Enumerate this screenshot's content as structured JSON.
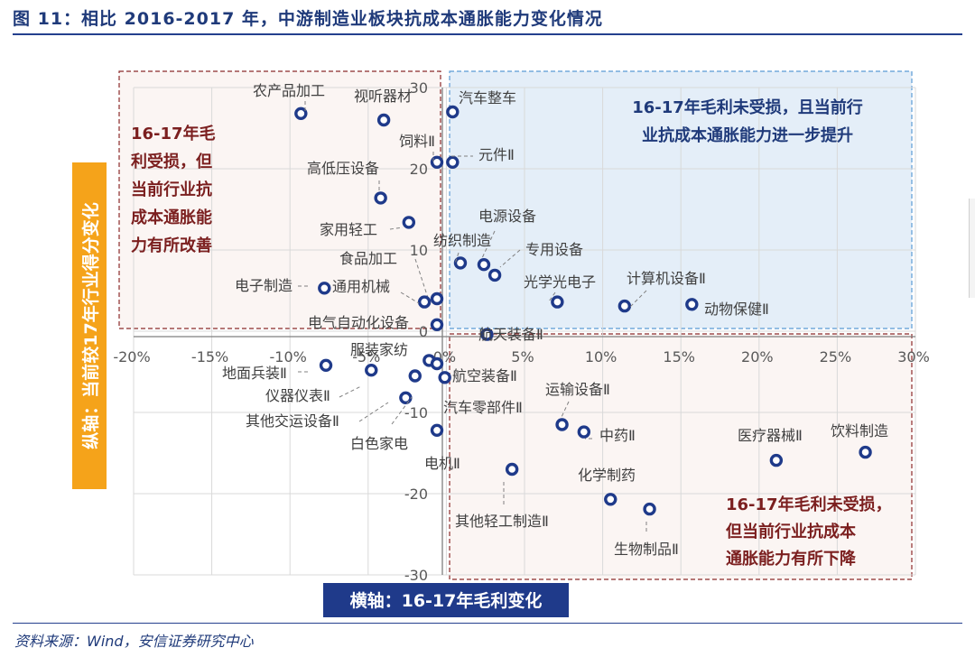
{
  "title": "图 11：相比 2016-2017 年，中游制造业板块抗成本通胀能力变化情况",
  "source": "资料来源：Wind，安信证券研究中心",
  "colors": {
    "title": "#1f3a7a",
    "point": "#1f3a8a",
    "zone_blue_fill": "#e4eef8",
    "zone_blue_border": "#5b9bd5",
    "zone_blue_text": "#1f3a7a",
    "zone_red_fill": "#fbf5f3",
    "zone_red_border": "#8b2a2a",
    "zone_red_text": "#7b1f1f",
    "y_label_bg": "#f5a31a",
    "x_label_bg": "#1f3a8a"
  },
  "chart_data": {
    "type": "scatter",
    "xlabel": "横轴：16-17年毛利变化",
    "ylabel": "纵轴：当前较17年行业得分变化",
    "x_unit": "percent",
    "xlim": [
      -20,
      30
    ],
    "ylim": [
      -30,
      30
    ],
    "x_ticks": [
      "-20%",
      "-15%",
      "-10%",
      "-5%",
      "0%",
      "5%",
      "10%",
      "15%",
      "20%",
      "25%",
      "30%"
    ],
    "y_ticks": [
      "30",
      "20",
      "10",
      "0",
      "-10",
      "-20",
      "-30"
    ],
    "grid": true,
    "zones": [
      {
        "name": "upper-left",
        "text": [
          "16-17年毛",
          "利受损，但",
          "当前行业抗",
          "成本通胀能",
          "力有所改善"
        ]
      },
      {
        "name": "upper-right",
        "text": [
          "16-17年毛利未受损，且当前行",
          "业抗成本通胀能力进一步提升"
        ]
      },
      {
        "name": "lower-right",
        "text": [
          "16-17年毛利未受损，",
          "但当前行业抗成本",
          "通胀能力有所下降"
        ]
      }
    ],
    "points": [
      {
        "label": "农产品加工",
        "x": -9.3,
        "y": 26.8
      },
      {
        "label": "视听器材",
        "x": -4.0,
        "y": 26.0
      },
      {
        "label": "汽车整车",
        "x": 0.4,
        "y": 27.0
      },
      {
        "label": "饲料Ⅱ",
        "x": -0.6,
        "y": 20.8
      },
      {
        "label": "元件Ⅱ",
        "x": 0.4,
        "y": 20.8
      },
      {
        "label": "高低压设备",
        "x": -4.2,
        "y": 16.4
      },
      {
        "label": "家用轻工",
        "x": -2.4,
        "y": 13.4
      },
      {
        "label": "电源设备",
        "x": 2.4,
        "y": 8.2
      },
      {
        "label": "纺织制造",
        "x": 0.9,
        "y": 8.4
      },
      {
        "label": "专用设备",
        "x": 3.1,
        "y": 6.9
      },
      {
        "label": "食品加工",
        "x": -0.6,
        "y": 4.0
      },
      {
        "label": "电子制造",
        "x": -7.8,
        "y": 5.3
      },
      {
        "label": "通用机械",
        "x": -1.4,
        "y": 3.6
      },
      {
        "label": "光学光电子",
        "x": 7.1,
        "y": 3.6
      },
      {
        "label": "计算机设备Ⅱ",
        "x": 11.4,
        "y": 3.1
      },
      {
        "label": "动物保健Ⅱ",
        "x": 15.7,
        "y": 3.3
      },
      {
        "label": "电气自动化设备",
        "x": -0.6,
        "y": 0.8
      },
      {
        "label": "航天装备Ⅱ",
        "x": 2.6,
        "y": -0.4
      },
      {
        "label": "服装家纺",
        "x": -1.1,
        "y": -3.6
      },
      {
        "label": "地面兵装Ⅱ",
        "x": -7.7,
        "y": -4.2
      },
      {
        "label": "航空装备Ⅱ",
        "x": -0.6,
        "y": -4.0
      },
      {
        "label": "仪器仪表Ⅱ",
        "x": -4.8,
        "y": -4.8
      },
      {
        "label": "汽车零部件Ⅱ",
        "x": -0.1,
        "y": -5.7
      },
      {
        "label": "其他交运设备Ⅱ",
        "x": -2.0,
        "y": -5.5
      },
      {
        "label": "运输设备Ⅱ",
        "x": 7.4,
        "y": -11.5
      },
      {
        "label": "白色家电",
        "x": -2.6,
        "y": -8.2
      },
      {
        "label": "中药Ⅱ",
        "x": 8.8,
        "y": -12.4
      },
      {
        "label": "电机Ⅱ",
        "x": -0.6,
        "y": -12.2
      },
      {
        "label": "医疗器械Ⅱ",
        "x": 21.1,
        "y": -15.9
      },
      {
        "label": "饮料制造",
        "x": 26.8,
        "y": -14.9
      },
      {
        "label": "化学制药",
        "x": 10.5,
        "y": -20.7
      },
      {
        "label": "其他轻工制造Ⅱ",
        "x": 4.2,
        "y": -17.0
      },
      {
        "label": "生物制品Ⅱ",
        "x": 13.0,
        "y": -21.9
      }
    ]
  }
}
